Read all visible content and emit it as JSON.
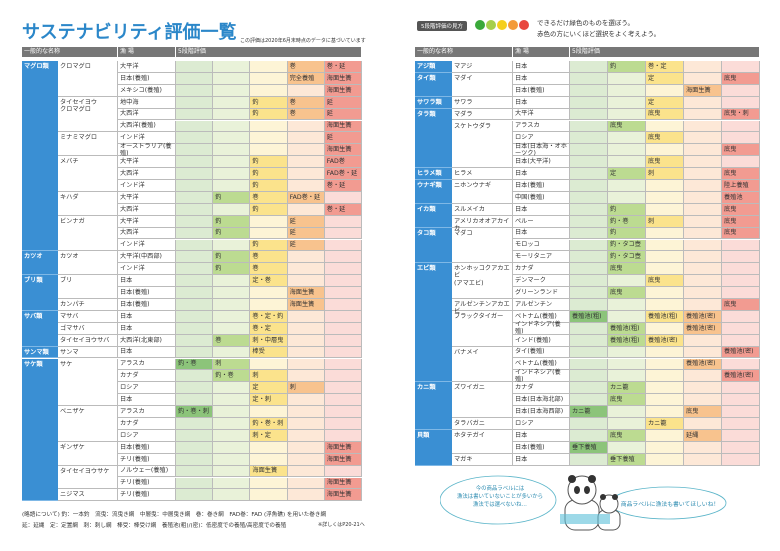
{
  "title": "サステナビリティ評価一覧",
  "title_note": "この評価は2020年6月末時点のデータに基づいています",
  "legend": {
    "label": "5段階評価の見方",
    "lines": [
      "できるだけ緑色のものを選ぼう。",
      "赤色の方にいくほど選択をよく考えよう。"
    ]
  },
  "left": {
    "header": [
      "一般的な名称",
      "漁 場",
      "5段階評価"
    ],
    "rows": [
      {
        "group": "マグロ類",
        "name": "クロマグロ",
        "origin": "大平洋",
        "cells": [
          null,
          null,
          null,
          "巻",
          "巻・延"
        ]
      },
      {
        "group": null,
        "name": null,
        "origin": "日本(養殖)",
        "cells": [
          null,
          null,
          null,
          "完全養殖",
          "海面生簀"
        ]
      },
      {
        "group": null,
        "name": null,
        "origin": "メキシコ(養殖)",
        "cells": [
          null,
          null,
          null,
          null,
          "海面生簀"
        ]
      },
      {
        "group": null,
        "name": "タイセイヨウ\nクロマグロ",
        "origin": "地中海",
        "cells": [
          null,
          null,
          "釣",
          "巻",
          "延"
        ]
      },
      {
        "group": null,
        "name": null,
        "origin": "大西洋",
        "cells": [
          null,
          null,
          "釣",
          "巻",
          "延"
        ]
      },
      {
        "group": null,
        "name": null,
        "origin": "大西洋(養殖)",
        "cells": [
          null,
          null,
          null,
          null,
          "海面生簀"
        ]
      },
      {
        "group": null,
        "name": "ミナミマグロ",
        "origin": "インド洋",
        "cells": [
          null,
          null,
          null,
          null,
          "延"
        ]
      },
      {
        "group": null,
        "name": null,
        "origin": "オーストラリア(養殖)",
        "cells": [
          null,
          null,
          null,
          null,
          "海面生簀"
        ]
      },
      {
        "group": null,
        "name": "メバチ",
        "origin": "大平洋",
        "cells": [
          null,
          null,
          "釣",
          null,
          "FAD巻"
        ]
      },
      {
        "group": null,
        "name": null,
        "origin": "大西洋",
        "cells": [
          null,
          null,
          "釣",
          null,
          "FAD巻・延"
        ]
      },
      {
        "group": null,
        "name": null,
        "origin": "インド洋",
        "cells": [
          null,
          null,
          "釣",
          null,
          "巻・延"
        ]
      },
      {
        "group": null,
        "name": "キハダ",
        "origin": "大平洋",
        "cells": [
          null,
          "釣",
          "巻",
          "FAD巻・延",
          null
        ]
      },
      {
        "group": null,
        "name": null,
        "origin": "大西洋",
        "cells": [
          null,
          null,
          "釣",
          null,
          "巻・延"
        ]
      },
      {
        "group": null,
        "name": "ビンナガ",
        "origin": "大平洋",
        "cells": [
          null,
          "釣",
          null,
          "延",
          null
        ]
      },
      {
        "group": null,
        "name": null,
        "origin": "大西洋",
        "cells": [
          null,
          "釣",
          null,
          "延",
          null
        ]
      },
      {
        "group": null,
        "name": null,
        "origin": "インド洋",
        "cells": [
          null,
          null,
          "釣",
          "延",
          null
        ]
      },
      {
        "group": "カツオ",
        "name": "カツオ",
        "origin": "大平洋(中西部)",
        "cells": [
          null,
          "釣",
          "巻",
          null,
          null
        ]
      },
      {
        "group": null,
        "name": null,
        "origin": "インド洋",
        "cells": [
          null,
          "釣",
          "巻",
          null,
          null
        ]
      },
      {
        "group": "ブリ類",
        "name": "ブリ",
        "origin": "日本",
        "cells": [
          null,
          null,
          "定・巻",
          null,
          null
        ]
      },
      {
        "group": null,
        "name": null,
        "origin": "日本(養殖)",
        "cells": [
          null,
          null,
          null,
          "海面生簀",
          null
        ]
      },
      {
        "group": null,
        "name": "カンパチ",
        "origin": "日本(養殖)",
        "cells": [
          null,
          null,
          null,
          "海面生簀",
          null
        ]
      },
      {
        "group": "サバ類",
        "name": "マサバ",
        "origin": "日本",
        "cells": [
          null,
          null,
          "巻・定・釣",
          null,
          null
        ]
      },
      {
        "group": null,
        "name": "ゴマサバ",
        "origin": "日本",
        "cells": [
          null,
          null,
          "巻・定",
          null,
          null
        ]
      },
      {
        "group": null,
        "name": "タイセイヨウサバ",
        "origin": "大西洋(北東部)",
        "cells": [
          null,
          "巻",
          "刺・中層曳",
          null,
          null
        ]
      },
      {
        "group": "サンマ類",
        "name": "サンマ",
        "origin": "日本",
        "cells": [
          null,
          null,
          "棒受",
          null,
          null
        ]
      },
      {
        "group": "サケ類",
        "name": "サケ",
        "origin": "アラスカ",
        "cells": [
          "釣・巻",
          "刺",
          null,
          null,
          null
        ]
      },
      {
        "group": null,
        "name": null,
        "origin": "カナダ",
        "cells": [
          null,
          "釣・巻",
          "刺",
          null,
          null
        ]
      },
      {
        "group": null,
        "name": null,
        "origin": "ロシア",
        "cells": [
          null,
          null,
          "定",
          "刺",
          null
        ]
      },
      {
        "group": null,
        "name": null,
        "origin": "日本",
        "cells": [
          null,
          null,
          "定・刺",
          null,
          null
        ]
      },
      {
        "group": null,
        "name": "ベニザケ",
        "origin": "アラスカ",
        "cells": [
          "釣・巻・刺",
          null,
          null,
          null,
          null
        ]
      },
      {
        "group": null,
        "name": null,
        "origin": "カナダ",
        "cells": [
          null,
          null,
          "釣・巻・刺",
          null,
          null
        ]
      },
      {
        "group": null,
        "name": null,
        "origin": "ロシア",
        "cells": [
          null,
          null,
          "刺・定",
          null,
          null
        ]
      },
      {
        "group": null,
        "name": "ギンザケ",
        "origin": "日本(養殖)",
        "cells": [
          null,
          null,
          null,
          null,
          "海面生簀"
        ]
      },
      {
        "group": null,
        "name": null,
        "origin": "チリ(養殖)",
        "cells": [
          null,
          null,
          null,
          null,
          "海面生簀"
        ]
      },
      {
        "group": null,
        "name": "タイセイヨウサケ",
        "origin": "ノルウェー(養殖)",
        "cells": [
          null,
          null,
          "海面生簀",
          null,
          null
        ]
      },
      {
        "group": null,
        "name": null,
        "origin": "チリ(養殖)",
        "cells": [
          null,
          null,
          null,
          null,
          "海面生簀"
        ]
      },
      {
        "group": null,
        "name": "ニジマス",
        "origin": "チリ(養殖)",
        "cells": [
          null,
          null,
          null,
          null,
          "海面生簀"
        ]
      }
    ]
  },
  "right": {
    "header": [
      "一般的な名称",
      "漁 場",
      "5段階評価"
    ],
    "rows": [
      {
        "group": "アジ類",
        "name": "マアジ",
        "origin": "日本",
        "cells": [
          null,
          "釣",
          "巻・定",
          null,
          null
        ]
      },
      {
        "group": "タイ類",
        "name": "マダイ",
        "origin": "日本",
        "cells": [
          null,
          null,
          "定",
          null,
          "底曳"
        ]
      },
      {
        "group": null,
        "name": null,
        "origin": "日本(養殖)",
        "cells": [
          null,
          null,
          null,
          "海面生簀",
          null
        ]
      },
      {
        "group": "サワラ類",
        "name": "サワラ",
        "origin": "日本",
        "cells": [
          null,
          null,
          "定",
          null,
          null
        ]
      },
      {
        "group": "タラ類",
        "name": "マダラ",
        "origin": "大平洋",
        "cells": [
          null,
          null,
          "底曳",
          null,
          "底曳・刺"
        ]
      },
      {
        "group": null,
        "name": "スケトウダラ",
        "origin": "アラスカ",
        "cells": [
          null,
          "底曳",
          null,
          null,
          null
        ]
      },
      {
        "group": null,
        "name": null,
        "origin": "ロシア",
        "cells": [
          null,
          null,
          "底曳",
          null,
          null
        ]
      },
      {
        "group": null,
        "name": null,
        "origin": "日本(日本海・オホーツク)",
        "cells": [
          null,
          null,
          null,
          null,
          "底曳"
        ]
      },
      {
        "group": null,
        "name": null,
        "origin": "日本(大平洋)",
        "cells": [
          null,
          null,
          "底曳",
          null,
          null
        ]
      },
      {
        "group": "ヒラメ類",
        "name": "ヒラメ",
        "origin": "日本",
        "cells": [
          null,
          "定",
          "刺",
          null,
          "底曳"
        ]
      },
      {
        "group": "ウナギ類",
        "name": "ニホンウナギ",
        "origin": "日本(養殖)",
        "cells": [
          null,
          null,
          null,
          null,
          "陸上養殖"
        ]
      },
      {
        "group": null,
        "name": null,
        "origin": "中国(養殖)",
        "cells": [
          null,
          null,
          null,
          null,
          "養殖池"
        ]
      },
      {
        "group": "イカ類",
        "name": "スルメイカ",
        "origin": "日本",
        "cells": [
          null,
          "釣",
          null,
          null,
          "底曳"
        ]
      },
      {
        "group": null,
        "name": "アメリカオオアカイカ",
        "origin": "ペルー",
        "cells": [
          null,
          "釣・巻",
          "刺",
          null,
          "底曳"
        ]
      },
      {
        "group": "タコ類",
        "name": "マダコ",
        "origin": "日本",
        "cells": [
          null,
          "釣",
          null,
          null,
          "底曳"
        ]
      },
      {
        "group": null,
        "name": null,
        "origin": "モロッコ",
        "cells": [
          null,
          "釣・タコ壺",
          null,
          null,
          null
        ]
      },
      {
        "group": null,
        "name": null,
        "origin": "モーリタニア",
        "cells": [
          null,
          "釣・タコ壺",
          null,
          null,
          null
        ]
      },
      {
        "group": "エビ類",
        "name": "ホンホッコクアカエビ\n(アマエビ)",
        "origin": "カナダ",
        "cells": [
          null,
          "底曳",
          null,
          null,
          null
        ]
      },
      {
        "group": null,
        "name": null,
        "origin": "デンマーク",
        "cells": [
          null,
          null,
          "底曳",
          null,
          null
        ]
      },
      {
        "group": null,
        "name": null,
        "origin": "グリーンランド",
        "cells": [
          null,
          "底曳",
          null,
          null,
          null
        ]
      },
      {
        "group": null,
        "name": "アルゼンチンアカエビ",
        "origin": "アルゼンチン",
        "cells": [
          null,
          null,
          null,
          null,
          "底曳"
        ]
      },
      {
        "group": null,
        "name": "ブラックタイガー",
        "origin": "ベトナム(養殖)",
        "cells": [
          "養殖池(粗)",
          null,
          "養殖池(粗)",
          "養殖池(密)",
          null
        ]
      },
      {
        "group": null,
        "name": null,
        "origin": "インドネシア(養殖)",
        "cells": [
          null,
          "養殖池(粗)",
          null,
          "養殖池(密)",
          null
        ]
      },
      {
        "group": null,
        "name": null,
        "origin": "インド(養殖)",
        "cells": [
          null,
          "養殖池(粗)",
          "養殖池(密)",
          null,
          null
        ]
      },
      {
        "group": null,
        "name": "バナメイ",
        "origin": "タイ(養殖)",
        "cells": [
          null,
          null,
          null,
          null,
          "養殖池(密)"
        ]
      },
      {
        "group": null,
        "name": null,
        "origin": "ベトナム(養殖)",
        "cells": [
          null,
          null,
          null,
          "養殖池(密)",
          null
        ]
      },
      {
        "group": null,
        "name": null,
        "origin": "インドネシア(養殖)",
        "cells": [
          null,
          null,
          null,
          null,
          "養殖池(密)"
        ]
      },
      {
        "group": "カニ類",
        "name": "ズワイガニ",
        "origin": "カナダ",
        "cells": [
          null,
          "カニ籠",
          null,
          null,
          null
        ]
      },
      {
        "group": null,
        "name": null,
        "origin": "日本(日本海北部)",
        "cells": [
          null,
          "底曳",
          null,
          null,
          null
        ]
      },
      {
        "group": null,
        "name": null,
        "origin": "日本(日本海西部)",
        "cells": [
          "カニ籠",
          null,
          null,
          "底曳",
          null
        ]
      },
      {
        "group": null,
        "name": "タラバガニ",
        "origin": "ロシア",
        "cells": [
          null,
          null,
          "カニ籠",
          null,
          null
        ]
      },
      {
        "group": "貝類",
        "name": "ホタテガイ",
        "origin": "日本",
        "cells": [
          null,
          "底曳",
          null,
          "延縄",
          null
        ]
      },
      {
        "group": null,
        "name": null,
        "origin": "日本(養殖)",
        "cells": [
          "垂下養殖",
          null,
          null,
          null,
          null
        ]
      },
      {
        "group": null,
        "name": "マガキ",
        "origin": "日本",
        "cells": [
          null,
          "垂下養殖",
          null,
          null,
          null
        ]
      }
    ]
  },
  "footnotes": [
    "(略語について) 釣：一本釣　流曳：流曳き網　中層曳：中層曳き網　巻：巻き網　FAD巻：FAD (浮魚礁) を用いた巻き網",
    "延：延縄　定：定置網　刺：刺し網　棒受：棒受け網　養殖池(粗)/(密)：低密度での養殖/高密度での養殖"
  ],
  "footnote_ref": "※詳しくはP20-21へ",
  "bubbles": [
    "今の商品ラベルには\n漁法は書いていないことが多いから\n漁法では選べないね…",
    "商品ラベルに漁法も書いてほしいね！"
  ]
}
